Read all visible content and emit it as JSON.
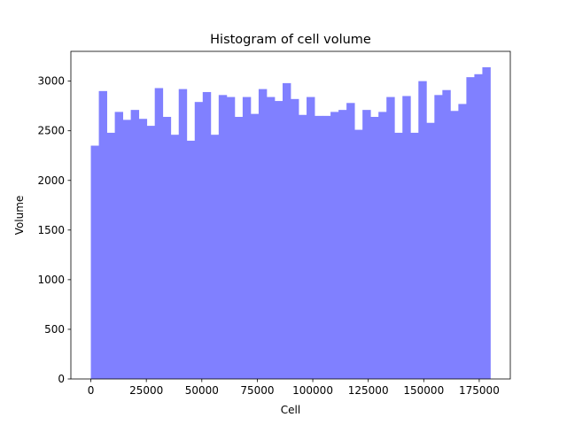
{
  "chart_data": {
    "type": "bar",
    "title": "Histogram of cell volume",
    "xlabel": "Cell",
    "ylabel": "Volume",
    "xlim": [
      -9000,
      189000
    ],
    "ylim": [
      0,
      3300
    ],
    "bin_start": 0,
    "bin_width": 3600,
    "values": [
      2350,
      2900,
      2480,
      2690,
      2610,
      2710,
      2620,
      2550,
      2930,
      2640,
      2460,
      2920,
      2400,
      2790,
      2890,
      2460,
      2860,
      2840,
      2640,
      2840,
      2670,
      2920,
      2840,
      2800,
      2980,
      2820,
      2660,
      2840,
      2650,
      2650,
      2690,
      2710,
      2780,
      2510,
      2710,
      2640,
      2690,
      2840,
      2480,
      2850,
      2480,
      3000,
      2580,
      2860,
      2910,
      2700,
      2770,
      3040,
      3070,
      3140
    ],
    "bar_color": "#8080ff",
    "xticks": [
      0,
      25000,
      50000,
      75000,
      100000,
      125000,
      150000,
      175000
    ],
    "yticks": [
      0,
      500,
      1000,
      1500,
      2000,
      2500,
      3000
    ],
    "grid": false
  }
}
